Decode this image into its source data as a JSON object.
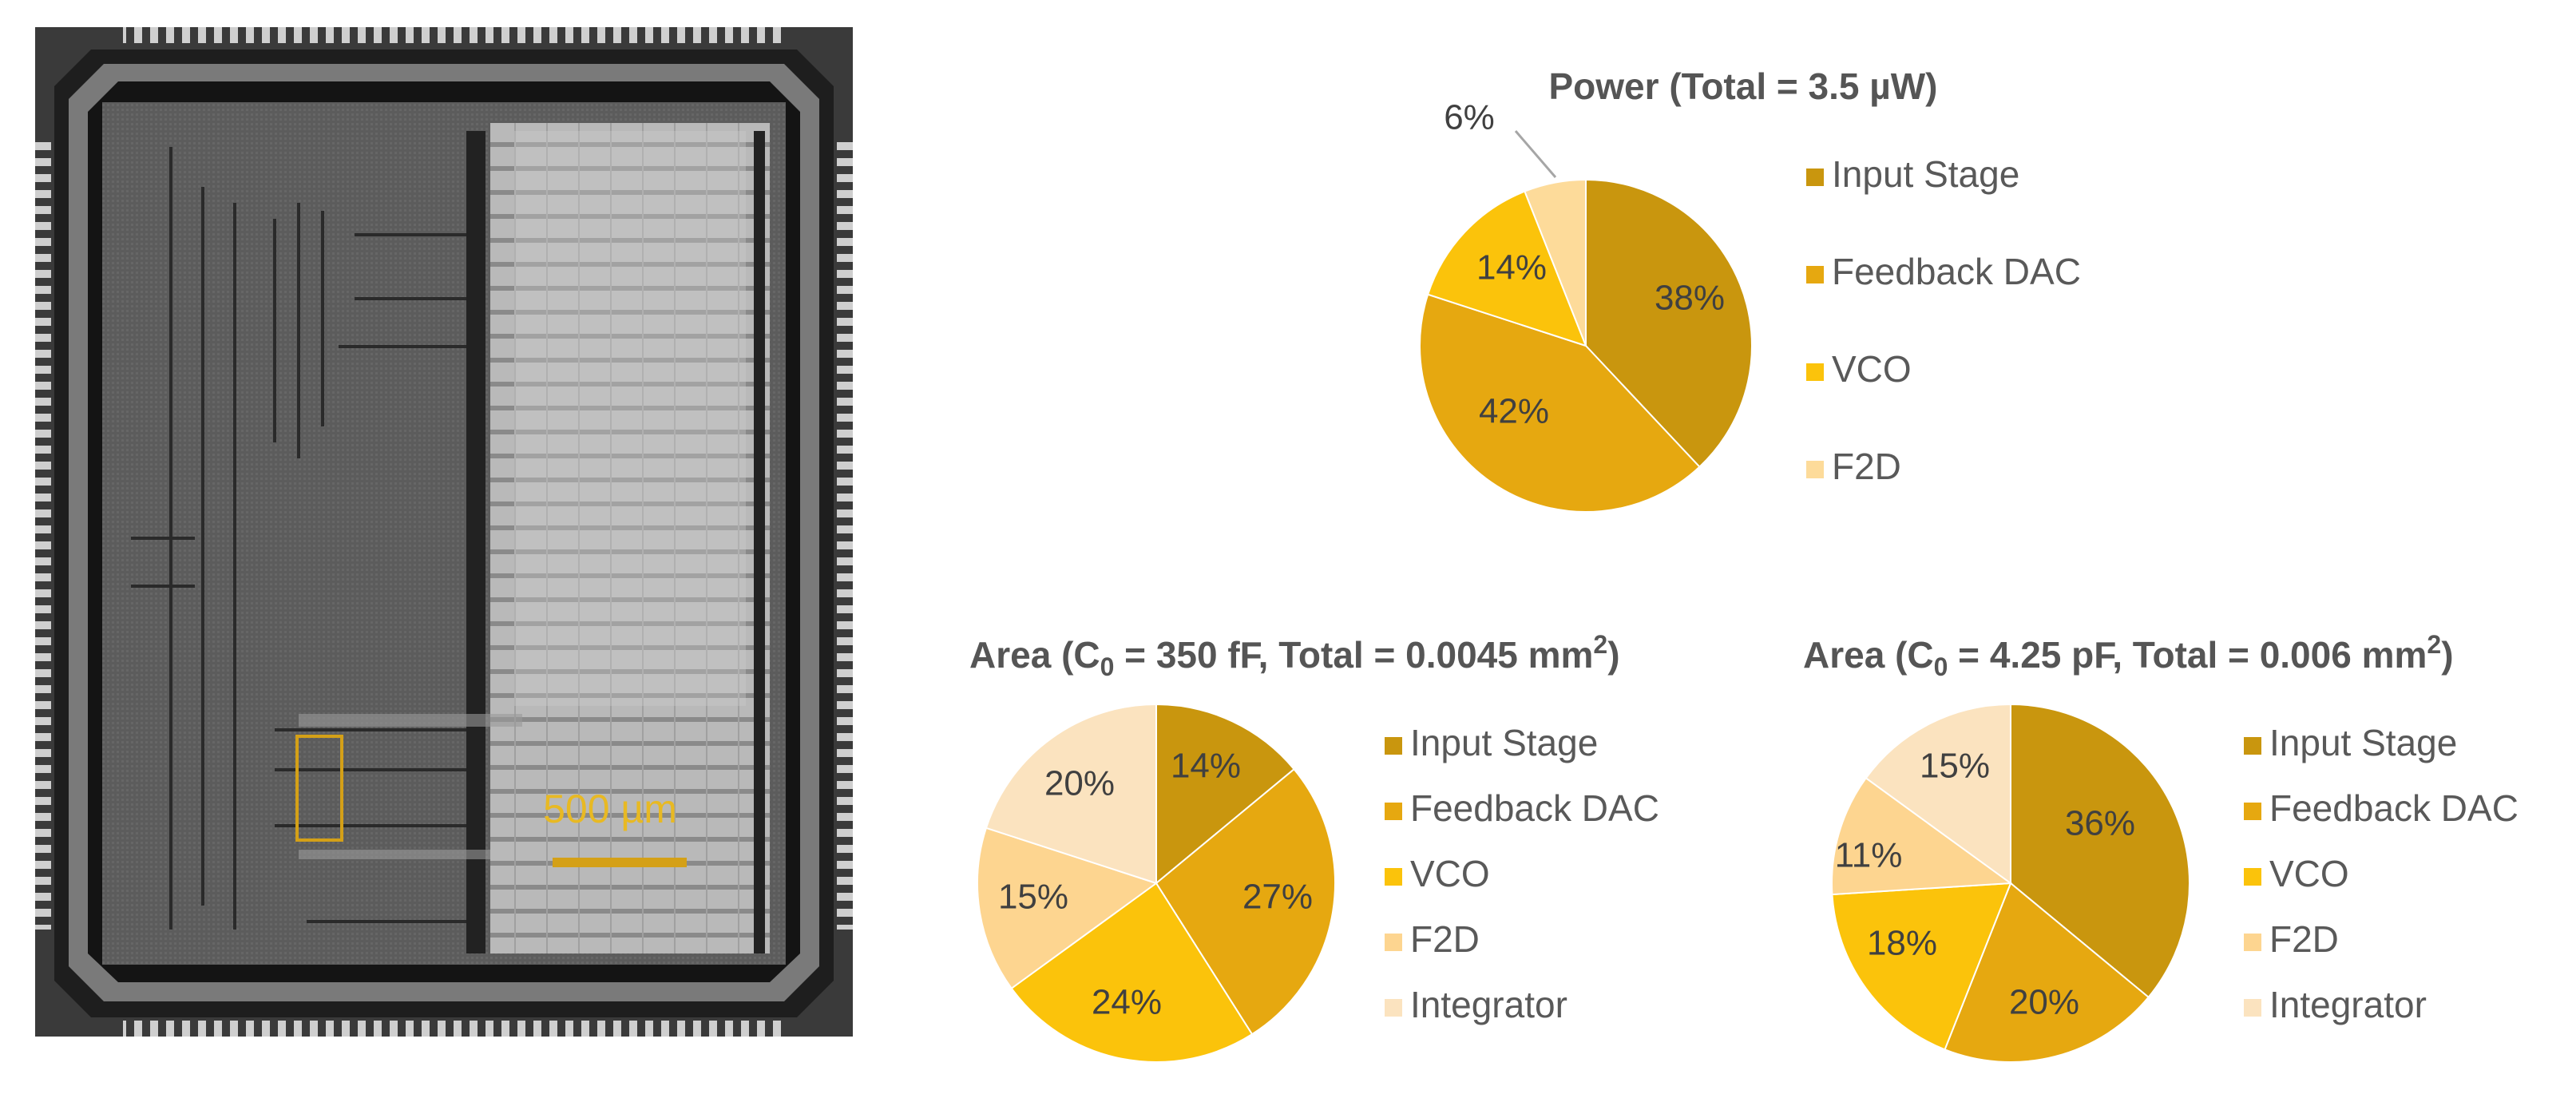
{
  "die_photo": {
    "scale_label": "500 µm",
    "colors": {
      "scale_bar": "#D4A017",
      "highlight": "#D4A017"
    }
  },
  "chart_data": [
    {
      "type": "pie",
      "title": "Power (Total = 3.5 µW)",
      "labels": [
        "Input Stage",
        "Feedback DAC",
        "VCO",
        "F2D"
      ],
      "values": [
        38,
        42,
        14,
        6
      ],
      "value_labels": [
        "38%",
        "42%",
        "14%",
        "6%"
      ],
      "colors": [
        "#C9960E",
        "#E6A810",
        "#FBC30B",
        "#FDDB9A"
      ],
      "legend_position": "right"
    },
    {
      "type": "pie",
      "title_prefix": "Area (C",
      "title_subscript": "0",
      "title_middle": " = 350 fF, Total = 0.0045 mm",
      "title_superscript": "2",
      "title_suffix": ")",
      "labels": [
        "Input Stage",
        "Feedback DAC",
        "VCO",
        "F2D",
        "Integrator"
      ],
      "values": [
        14,
        27,
        24,
        15,
        20
      ],
      "value_labels": [
        "14%",
        "27%",
        "24%",
        "15%",
        "20%"
      ],
      "colors": [
        "#C9960E",
        "#E6A810",
        "#FBC30B",
        "#FDD590",
        "#FBE3BF"
      ],
      "legend_position": "right"
    },
    {
      "type": "pie",
      "title_prefix": "Area (C",
      "title_subscript": "0",
      "title_middle": " = 4.25 pF, Total = 0.006 mm",
      "title_superscript": "2",
      "title_suffix": ")",
      "labels": [
        "Input Stage",
        "Feedback DAC",
        "VCO",
        "F2D",
        "Integrator"
      ],
      "values": [
        36,
        20,
        18,
        11,
        15
      ],
      "value_labels": [
        "36%",
        "20%",
        "18%",
        "11%",
        "15%"
      ],
      "colors": [
        "#C9960E",
        "#E6A810",
        "#FBC30B",
        "#FDD590",
        "#FBE3BF"
      ],
      "legend_position": "right"
    }
  ]
}
